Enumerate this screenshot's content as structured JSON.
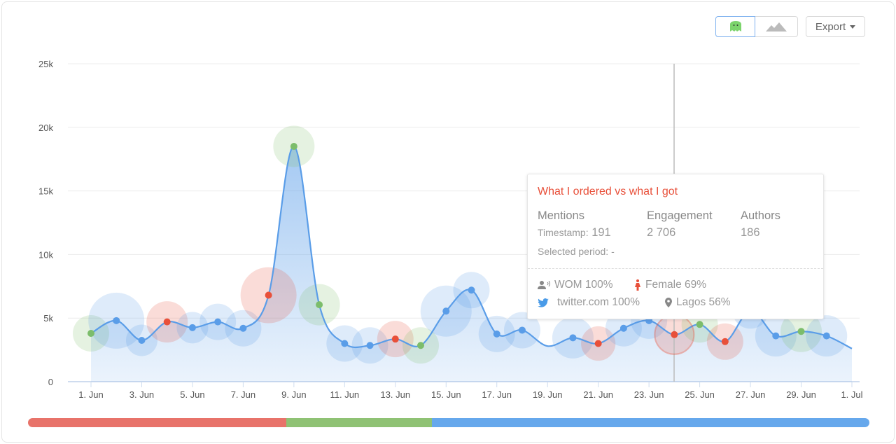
{
  "toolbar": {
    "view_icons": [
      "ghost-icon",
      "area-chart-icon"
    ],
    "export_label": "Export"
  },
  "colors": {
    "line": "#5a9de8",
    "positive": "#7cbd6b",
    "negative": "#e8503a",
    "neutral": "#5a9de8"
  },
  "chart_data": {
    "type": "line",
    "ylim": [
      0,
      25000
    ],
    "y_ticks": [
      "0",
      "5k",
      "10k",
      "15k",
      "20k",
      "25k"
    ],
    "x_ticks": [
      "1. Jun",
      "3. Jun",
      "5. Jun",
      "7. Jun",
      "9. Jun",
      "11. Jun",
      "13. Jun",
      "15. Jun",
      "17. Jun",
      "19. Jun",
      "21. Jun",
      "23. Jun",
      "25. Jun",
      "27. Jun",
      "29. Jun",
      "1. Jul"
    ],
    "grid": true,
    "points": [
      {
        "day": 1,
        "value": 3800,
        "sentiment": "positive",
        "bubble": 2
      },
      {
        "day": 2,
        "value": 4800,
        "sentiment": "neutral",
        "bubble": 4
      },
      {
        "day": 3,
        "value": 3250,
        "sentiment": "neutral",
        "bubble": 1.5
      },
      {
        "day": 4,
        "value": 4700,
        "sentiment": "negative",
        "bubble": 2.5
      },
      {
        "day": 5,
        "value": 4250,
        "sentiment": "neutral",
        "bubble": 1.5
      },
      {
        "day": 6,
        "value": 4700,
        "sentiment": "neutral",
        "bubble": 2
      },
      {
        "day": 7,
        "value": 4200,
        "sentiment": "neutral",
        "bubble": 2
      },
      {
        "day": 8,
        "value": 6800,
        "sentiment": "negative",
        "bubble": 4
      },
      {
        "day": 9,
        "value": 18500,
        "sentiment": "positive",
        "bubble": 2.5
      },
      {
        "day": 10,
        "value": 6050,
        "sentiment": "positive",
        "bubble": 2.5
      },
      {
        "day": 11,
        "value": 3000,
        "sentiment": "neutral",
        "bubble": 2
      },
      {
        "day": 12,
        "value": 2850,
        "sentiment": "neutral",
        "bubble": 2
      },
      {
        "day": 13,
        "value": 3350,
        "sentiment": "negative",
        "bubble": 2
      },
      {
        "day": 14,
        "value": 2850,
        "sentiment": "positive",
        "bubble": 2
      },
      {
        "day": 15,
        "value": 5550,
        "sentiment": "neutral",
        "bubble": 3.5
      },
      {
        "day": 16,
        "value": 7200,
        "sentiment": "neutral",
        "bubble": 2
      },
      {
        "day": 17,
        "value": 3750,
        "sentiment": "neutral",
        "bubble": 2
      },
      {
        "day": 18,
        "value": 4050,
        "sentiment": "neutral",
        "bubble": 2
      },
      {
        "day": 19,
        "value": 2800,
        "sentiment": null,
        "bubble": 0
      },
      {
        "day": 20,
        "value": 3450,
        "sentiment": "neutral",
        "bubble": 2.5
      },
      {
        "day": 21,
        "value": 3000,
        "sentiment": "negative",
        "bubble": 1.8
      },
      {
        "day": 22,
        "value": 4200,
        "sentiment": "neutral",
        "bubble": 2
      },
      {
        "day": 23,
        "value": 4800,
        "sentiment": "neutral",
        "bubble": 2
      },
      {
        "day": 24,
        "value": 3700,
        "sentiment": "negative",
        "bubble": 2.2
      },
      {
        "day": 25,
        "value": 4500,
        "sentiment": "positive",
        "bubble": 2
      },
      {
        "day": 26,
        "value": 3150,
        "sentiment": "negative",
        "bubble": 2
      },
      {
        "day": 27,
        "value": 5600,
        "sentiment": "neutral",
        "bubble": 2
      },
      {
        "day": 28,
        "value": 3600,
        "sentiment": "neutral",
        "bubble": 2.5
      },
      {
        "day": 29,
        "value": 3950,
        "sentiment": "positive",
        "bubble": 2.5
      },
      {
        "day": 30,
        "value": 3600,
        "sentiment": "neutral",
        "bubble": 2.5
      },
      {
        "day": 31,
        "value": 2600,
        "sentiment": null,
        "bubble": 0
      }
    ],
    "hovered_day": 24
  },
  "tooltip": {
    "title": "What I ordered vs what I got",
    "mentions_label": "Mentions",
    "timestamp_label": "Timestamp:",
    "timestamp_value": "191",
    "engagement_label": "Engagement",
    "engagement_value": "2 706",
    "authors_label": "Authors",
    "authors_value": "186",
    "selected_period": "Selected period: -",
    "wom": "WOM 100%",
    "gender": "Female 69%",
    "source": "twitter.com 100%",
    "location": "Lagos 56%"
  },
  "sentiment_bar": [
    {
      "name": "negative",
      "share": 0.307,
      "color": "#e8736a"
    },
    {
      "name": "positive",
      "share": 0.173,
      "color": "#8fc274"
    },
    {
      "name": "neutral",
      "share": 0.52,
      "color": "#66a8ec"
    }
  ]
}
